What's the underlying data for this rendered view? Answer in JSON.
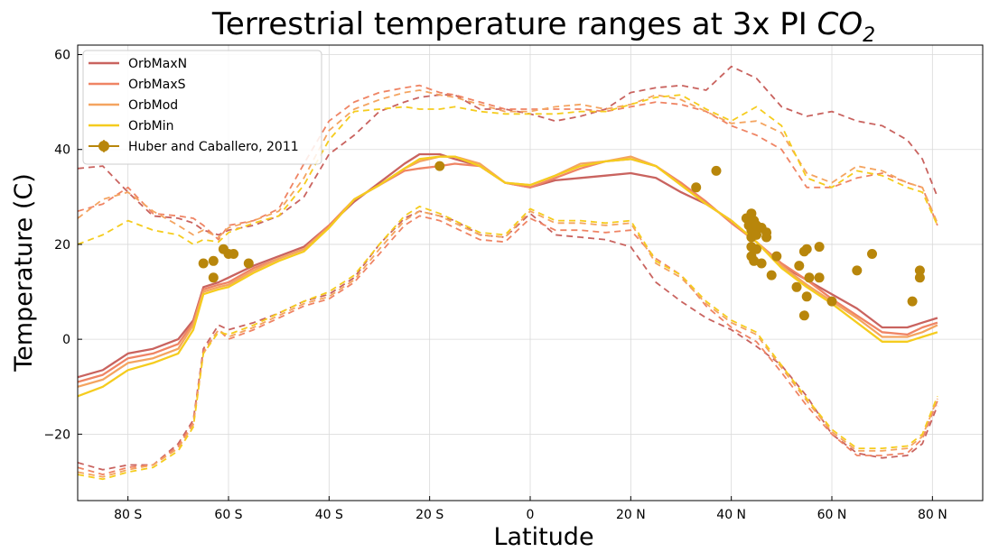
{
  "chart_data": {
    "type": "line",
    "title_main": "Terrestrial temperature ranges at 3x PI ",
    "title_chem": "CO",
    "title_sub": "2",
    "xlabel": "Latitude",
    "ylabel": "Temperature (C)",
    "xlim": [
      -90,
      90
    ],
    "ylim": [
      -34,
      62
    ],
    "grid": true,
    "legend_position": "top-left",
    "x_ticks": [
      {
        "value": -80,
        "label": "80 S"
      },
      {
        "value": -60,
        "label": "60 S"
      },
      {
        "value": -40,
        "label": "40 S"
      },
      {
        "value": -20,
        "label": "20 S"
      },
      {
        "value": 0,
        "label": "0"
      },
      {
        "value": 20,
        "label": "20 N"
      },
      {
        "value": 40,
        "label": "40 N"
      },
      {
        "value": 60,
        "label": "60 N"
      },
      {
        "value": 80,
        "label": "80 N"
      }
    ],
    "y_ticks": [
      {
        "value": -20,
        "label": "−20"
      },
      {
        "value": 0,
        "label": "0"
      },
      {
        "value": 20,
        "label": "20"
      },
      {
        "value": 40,
        "label": "40"
      },
      {
        "value": 60,
        "label": "60"
      }
    ],
    "x": [
      -90,
      -85,
      -80,
      -75,
      -70,
      -67,
      -65,
      -62,
      -60,
      -55,
      -50,
      -45,
      -40,
      -35,
      -30,
      -25,
      -22,
      -18,
      -15,
      -10,
      -5,
      0,
      5,
      10,
      15,
      20,
      25,
      30,
      35,
      40,
      45,
      50,
      55,
      60,
      65,
      70,
      75,
      78,
      81
    ],
    "series": [
      {
        "name": "OrbMaxN",
        "color": "#c9635f",
        "mean": [
          -8,
          -6.5,
          -3,
          -2,
          0,
          4,
          11,
          12,
          13,
          15.5,
          17.5,
          19.5,
          24,
          29,
          33,
          37,
          39,
          39,
          38,
          36.5,
          33,
          32,
          33.5,
          34,
          34.5,
          35,
          34,
          31,
          28.5,
          25,
          20.5,
          15.5,
          12.5,
          9.5,
          6.5,
          2.5,
          2.5,
          3.5,
          4.5
        ],
        "max": [
          36,
          36.5,
          31,
          26,
          25.5,
          24.5,
          23,
          22,
          23,
          24,
          26,
          30,
          39,
          43,
          48,
          50,
          51,
          51.5,
          51.5,
          48.5,
          48.5,
          47.5,
          46,
          47,
          48.5,
          52,
          53,
          53.5,
          52.5,
          57.5,
          55,
          49,
          47,
          48,
          46,
          45,
          42,
          38,
          30
        ],
        "min": [
          -26,
          -27.5,
          -26.5,
          -26.5,
          -22,
          -17,
          -2,
          3,
          2,
          3.5,
          5.5,
          8,
          9.5,
          13,
          20,
          25.5,
          27,
          26,
          25,
          22,
          21.5,
          26.5,
          22,
          21.5,
          21,
          19.5,
          12,
          8,
          4.5,
          2,
          -1.5,
          -5.5,
          -12,
          -20,
          -24,
          -25,
          -24.5,
          -22,
          -14
        ]
      },
      {
        "name": "OrbMaxS",
        "color": "#ef8464",
        "mean": [
          -9,
          -7.5,
          -4,
          -3,
          -1,
          3.5,
          10.5,
          11.5,
          12,
          15,
          17,
          19,
          24,
          29.5,
          32.5,
          35.5,
          36,
          36.5,
          37,
          36.5,
          33,
          32,
          34,
          36,
          37.5,
          38,
          36.5,
          33,
          29,
          24.5,
          20.5,
          16,
          12.5,
          8.5,
          5,
          1.5,
          1,
          2.5,
          3.5
        ],
        "max": [
          27,
          28.5,
          32,
          26.5,
          26,
          25.5,
          24,
          21,
          24,
          25,
          27.5,
          37,
          46,
          50,
          52,
          53,
          53.5,
          52,
          51.5,
          50,
          48.5,
          48.5,
          48.5,
          48.5,
          48,
          49,
          50,
          49.5,
          48,
          45,
          43,
          40,
          32,
          32,
          34,
          35,
          33,
          32,
          24
        ],
        "min": [
          -27,
          -28.5,
          -27,
          -26.5,
          -22.5,
          -17.5,
          -2.5,
          2,
          0,
          2,
          4.5,
          7,
          8.5,
          12,
          18,
          24,
          26,
          25,
          23.5,
          21,
          20.5,
          25.5,
          23,
          23,
          22.5,
          23,
          17,
          13.5,
          7,
          2.5,
          -0.5,
          -7,
          -14,
          -20,
          -24.5,
          -24.5,
          -24,
          -21,
          -13
        ]
      },
      {
        "name": "OrbMod",
        "color": "#f4a460",
        "mean": [
          -10,
          -8.5,
          -5,
          -4,
          -2,
          3,
          10,
          11,
          11.5,
          14.5,
          17,
          19,
          23.5,
          29.5,
          32.5,
          36,
          37.5,
          38.5,
          38.5,
          37,
          33,
          32.5,
          34.5,
          37,
          37.5,
          38.5,
          36.5,
          32.5,
          28.5,
          25,
          20.5,
          15.5,
          11.5,
          8,
          4.5,
          0.5,
          0.5,
          1.5,
          3
        ],
        "max": [
          25.5,
          29.5,
          31,
          27,
          24,
          22,
          23,
          21.5,
          23.5,
          25,
          27,
          34,
          44,
          48.5,
          50.5,
          52,
          52.5,
          51.5,
          51,
          49.5,
          48,
          48,
          49,
          49.5,
          48.5,
          49.5,
          51.5,
          50.5,
          48,
          45.5,
          46,
          43.5,
          35,
          33,
          36.5,
          35.5,
          33,
          32,
          24.5
        ],
        "min": [
          -28,
          -29,
          -27.5,
          -26.5,
          -23,
          -18,
          -3,
          2,
          0.5,
          2.5,
          5,
          7.5,
          9,
          12.5,
          19,
          25,
          27,
          26,
          24.5,
          22,
          21.5,
          27,
          24.5,
          24.5,
          24,
          24.5,
          16,
          13,
          7.5,
          3.5,
          1,
          -6,
          -13,
          -19.5,
          -23.5,
          -23.5,
          -23,
          -20.5,
          -12.5
        ]
      },
      {
        "name": "OrbMin",
        "color": "#f5cc1e",
        "mean": [
          -12,
          -10,
          -6.5,
          -5,
          -3,
          2,
          9.5,
          10.5,
          11,
          14,
          16.5,
          18.5,
          23.5,
          29.5,
          32.5,
          36,
          38,
          38.5,
          38.5,
          36.5,
          33,
          32.5,
          34.5,
          36.5,
          37.5,
          38,
          36.5,
          32.5,
          28.5,
          25,
          20.5,
          15,
          11,
          7.5,
          3.5,
          -0.5,
          -0.5,
          0.5,
          1.5
        ],
        "max": [
          20,
          22,
          25,
          23,
          22,
          20,
          21,
          20.5,
          22.5,
          24.5,
          26,
          32.5,
          42,
          48,
          48.5,
          49,
          48.5,
          48.5,
          49,
          48,
          47.5,
          47.5,
          47.5,
          48,
          48,
          49.5,
          51,
          51.5,
          48.5,
          46,
          49,
          45,
          34,
          32,
          35.5,
          34.5,
          32,
          31,
          24
        ],
        "min": [
          -28.5,
          -29.5,
          -28,
          -27,
          -23.5,
          -18.5,
          -3,
          1.5,
          1,
          3,
          5.5,
          8,
          10,
          13.5,
          20,
          26,
          28,
          26.5,
          25,
          22.5,
          22,
          27.5,
          25,
          25,
          24.5,
          25,
          16.5,
          13.5,
          8,
          4,
          1.5,
          -5.5,
          -12.5,
          -19,
          -23,
          -23,
          -22.5,
          -20,
          -12
        ]
      }
    ],
    "observations": {
      "name": "Huber and Caballero, 2011",
      "color": "#b8860b",
      "points": [
        [
          -65,
          16
        ],
        [
          -63,
          16.5
        ],
        [
          -63,
          13
        ],
        [
          -61,
          19
        ],
        [
          -60,
          18
        ],
        [
          -59,
          18
        ],
        [
          -56,
          16
        ],
        [
          -18,
          36.5
        ],
        [
          33,
          32
        ],
        [
          37,
          35.5
        ],
        [
          43,
          25.5
        ],
        [
          43.5,
          24
        ],
        [
          44,
          26.5
        ],
        [
          44,
          23
        ],
        [
          44,
          21.5
        ],
        [
          44,
          19.5
        ],
        [
          44,
          17.5
        ],
        [
          44.5,
          16.5
        ],
        [
          44.5,
          25
        ],
        [
          45,
          22
        ],
        [
          45,
          19
        ],
        [
          45,
          24
        ],
        [
          46,
          16
        ],
        [
          46,
          23.5
        ],
        [
          47,
          21.5
        ],
        [
          47,
          22.5
        ],
        [
          48,
          13.5
        ],
        [
          49,
          17.5
        ],
        [
          53,
          11
        ],
        [
          53.5,
          15.5
        ],
        [
          54.5,
          18.5
        ],
        [
          54.5,
          5
        ],
        [
          55,
          9
        ],
        [
          55,
          19
        ],
        [
          55.5,
          13
        ],
        [
          57.5,
          13
        ],
        [
          57.5,
          19.5
        ],
        [
          60,
          8
        ],
        [
          65,
          14.5
        ],
        [
          68,
          18
        ],
        [
          76,
          8
        ],
        [
          77.5,
          14.5
        ],
        [
          77.5,
          13
        ]
      ]
    }
  }
}
